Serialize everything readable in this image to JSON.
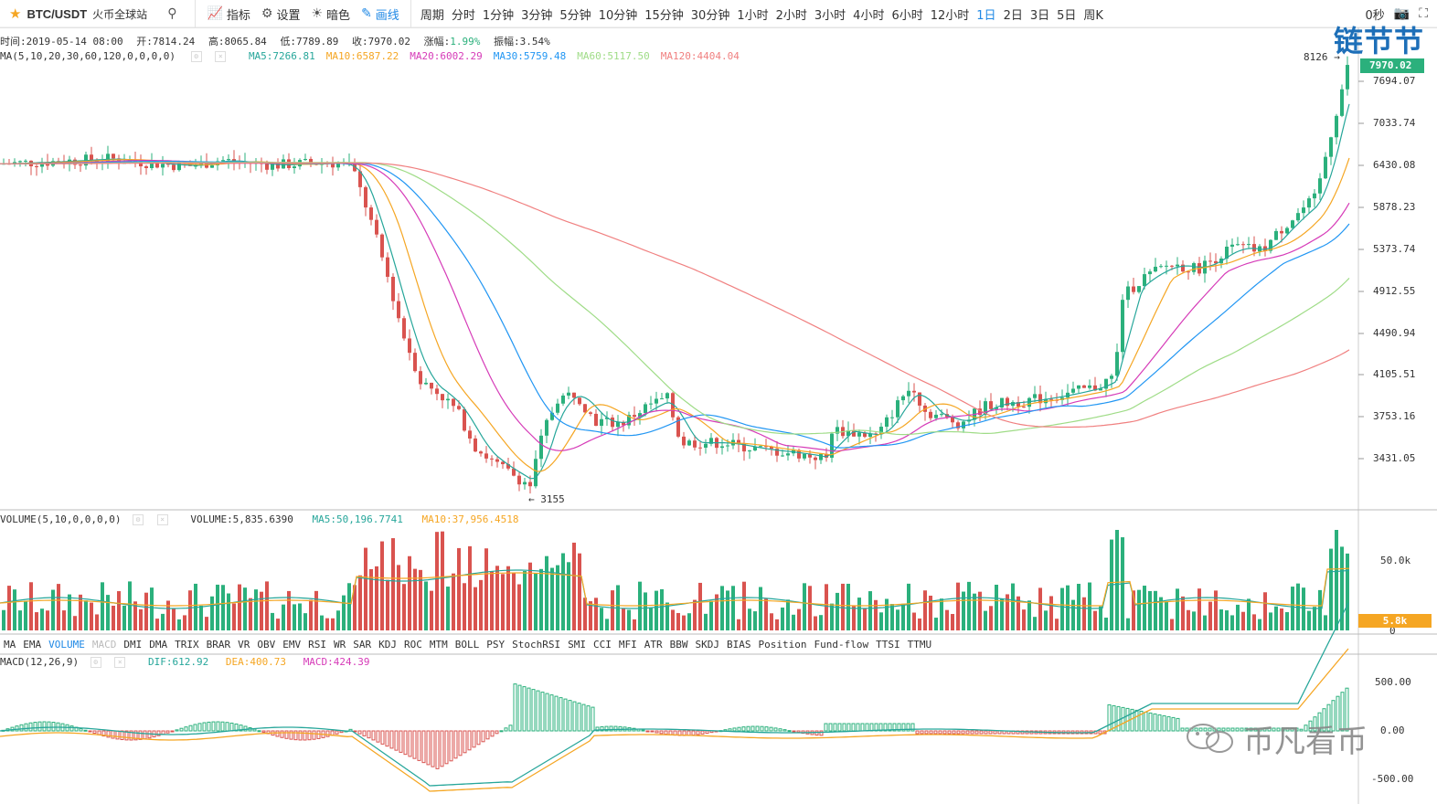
{
  "toolbar": {
    "symbol": "BTC/USDT",
    "exchange": "火币全球站",
    "indicators_label": "指标",
    "settings_label": "设置",
    "theme_label": "暗色",
    "draw_label": "画线",
    "period_label": "周期",
    "periods": [
      "分时",
      "1分钟",
      "3分钟",
      "5分钟",
      "10分钟",
      "15分钟",
      "30分钟",
      "1小时",
      "2小时",
      "3小时",
      "4小时",
      "6小时",
      "12小时",
      "1日",
      "2日",
      "3日",
      "5日",
      "周K"
    ],
    "active_period": "1日",
    "timer": "0秒"
  },
  "ohlc": {
    "time": "时间:2019-05-14 08:00",
    "open": "开:7814.24",
    "high": "高:8065.84",
    "low": "低:7789.89",
    "close": "收:7970.02",
    "change_label": "涨幅:",
    "change": "1.99%",
    "amplitude": "振幅:3.54%"
  },
  "ma_legend": {
    "title": "MA(5,10,20,30,60,120,0,0,0,0)",
    "items": [
      {
        "text": "MA5:7266.81",
        "color": "#26a69a"
      },
      {
        "text": "MA10:6587.22",
        "color": "#f5a623"
      },
      {
        "text": "MA20:6002.29",
        "color": "#d63bb8"
      },
      {
        "text": "MA30:5759.48",
        "color": "#2196f3"
      },
      {
        "text": "MA60:5117.50",
        "color": "#9fdc87"
      },
      {
        "text": "MA120:4404.04",
        "color": "#f08080"
      }
    ]
  },
  "price_axis": [
    "7694.07",
    "7033.74",
    "6430.08",
    "5878.23",
    "5373.74",
    "4912.55",
    "4490.94",
    "4105.51",
    "3753.16",
    "3431.05"
  ],
  "current_price": "7970.02",
  "high_marker": "8126 →",
  "low_marker": "← 3155",
  "volume_legend": {
    "title": "VOLUME(5,10,0,0,0,0)",
    "value": "VOLUME:5,835.6390",
    "ma5": "MA5:50,196.7741",
    "ma10": "MA10:37,956.4518"
  },
  "volume_axis": [
    "50.0k",
    "0"
  ],
  "current_volume": "5.8k",
  "indicator_tabs": [
    "MA",
    "EMA",
    "VOLUME",
    "MACD",
    "DMI",
    "DMA",
    "TRIX",
    "BRAR",
    "VR",
    "OBV",
    "EMV",
    "RSI",
    "WR",
    "SAR",
    "KDJ",
    "ROC",
    "MTM",
    "BOLL",
    "PSY",
    "StochRSI",
    "SMI",
    "CCI",
    "MFI",
    "ATR",
    "BBW",
    "SKDJ",
    "BIAS",
    "Position",
    "Fund-flow",
    "TTSI",
    "TTMU"
  ],
  "active_indicator": "VOLUME",
  "dim_indicator": "MACD",
  "macd_legend": {
    "title": "MACD(12,26,9)",
    "dif": "DIF:612.92",
    "dea": "DEA:400.73",
    "macd": "MACD:424.39"
  },
  "macd_axis": [
    "500.00",
    "0.00",
    "-500.00"
  ],
  "watermark_top": "链节节",
  "watermark_bottom": "币凡看币",
  "colors": {
    "up": "#2bb07c",
    "down": "#d9534f",
    "accent": "#1e88e5",
    "macd_line_dif": "#26a69a",
    "macd_line_dea": "#f5a623",
    "volume_tag": "#f5a623"
  }
}
